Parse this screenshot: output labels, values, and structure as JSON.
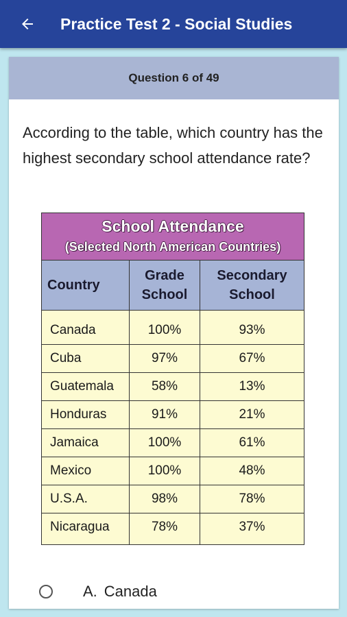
{
  "app_bar": {
    "title": "Practice Test 2 - Social Studies",
    "back_icon": "arrow-left-icon"
  },
  "question": {
    "counter": "Question 6 of 49",
    "text": "According to the table, which country has the highest secondary school attendance rate?"
  },
  "table": {
    "title": "School Attendance",
    "subtitle": "(Selected North American Countries)",
    "columns": {
      "country": "Country",
      "grade_line1": "Grade",
      "grade_line2": "School",
      "secondary_line1": "Secondary",
      "secondary_line2": "School"
    },
    "rows": [
      {
        "country": "Canada",
        "grade": "100%",
        "secondary": "93%"
      },
      {
        "country": "Cuba",
        "grade": "97%",
        "secondary": "67%"
      },
      {
        "country": "Guatemala",
        "grade": "58%",
        "secondary": "13%"
      },
      {
        "country": "Honduras",
        "grade": "91%",
        "secondary": "21%"
      },
      {
        "country": "Jamaica",
        "grade": "100%",
        "secondary": "61%"
      },
      {
        "country": "Mexico",
        "grade": "100%",
        "secondary": "48%"
      },
      {
        "country": "U.S.A.",
        "grade": "98%",
        "secondary": "78%"
      },
      {
        "country": "Nicaragua",
        "grade": "78%",
        "secondary": "37%"
      }
    ],
    "colors": {
      "title_bg": "#b867b2",
      "header_bg": "#a6b4d6",
      "body_bg": "#fdfbd2"
    }
  },
  "options": [
    {
      "letter": "A.",
      "text": "Canada",
      "selected": false
    }
  ],
  "colors": {
    "app_bar": "#26449a",
    "background": "#bfe6ef",
    "card_header": "#a9b5d3"
  }
}
